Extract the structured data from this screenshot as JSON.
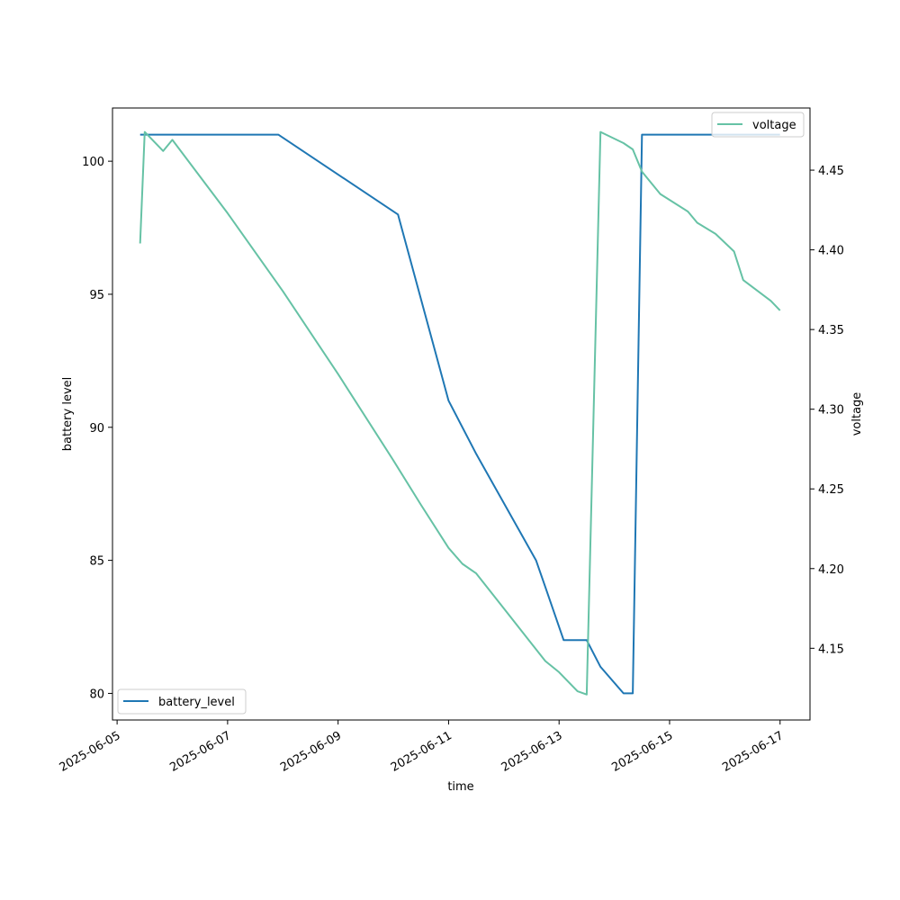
{
  "chart_data": {
    "type": "line",
    "xlabel": "time",
    "ylabel_left": "battery level",
    "ylabel_right": "voltage",
    "x_ticks": [
      "2025-06-05",
      "2025-06-07",
      "2025-06-09",
      "2025-06-11",
      "2025-06-13",
      "2025-06-15",
      "2025-06-17"
    ],
    "xlim": [
      "2025-06-04T22:00",
      "2025-06-17T13:00"
    ],
    "y_left_ticks": [
      80,
      85,
      90,
      95,
      100
    ],
    "y_left_lim": [
      79,
      102
    ],
    "y_right_ticks": [
      4.15,
      4.2,
      4.25,
      4.3,
      4.35,
      4.4,
      4.45
    ],
    "y_right_lim": [
      4.105,
      4.489
    ],
    "series": [
      {
        "name": "battery_level",
        "axis": "left",
        "color": "#1f77b4",
        "legend_position": "lower-left",
        "x": [
          "2025-06-05T10:00",
          "2025-06-07T22:00",
          "2025-06-10T02:00",
          "2025-06-11T00:00",
          "2025-06-11T12:00",
          "2025-06-12T14:00",
          "2025-06-12T18:00",
          "2025-06-13T02:00",
          "2025-06-13T08:00",
          "2025-06-13T12:00",
          "2025-06-13T18:00",
          "2025-06-14T04:00",
          "2025-06-14T08:00",
          "2025-06-14T12:00",
          "2025-06-16T00:00",
          "2025-06-17T00:00"
        ],
        "y": [
          101,
          101,
          98,
          91,
          89,
          85,
          84,
          82,
          82,
          82,
          81,
          80,
          80,
          101,
          101,
          101
        ]
      },
      {
        "name": "voltage",
        "axis": "right",
        "color": "#66c2a5",
        "legend_position": "upper-right",
        "x": [
          "2025-06-05T10:00",
          "2025-06-05T12:00",
          "2025-06-05T20:00",
          "2025-06-06T00:00",
          "2025-06-07T00:00",
          "2025-06-08T00:00",
          "2025-06-09T00:00",
          "2025-06-10T00:00",
          "2025-06-10T12:00",
          "2025-06-11T00:00",
          "2025-06-11T06:00",
          "2025-06-11T12:00",
          "2025-06-12T00:00",
          "2025-06-12T12:00",
          "2025-06-12T18:00",
          "2025-06-13T00:00",
          "2025-06-13T08:00",
          "2025-06-13T12:00",
          "2025-06-13T18:00",
          "2025-06-14T04:00",
          "2025-06-14T08:00",
          "2025-06-14T12:00",
          "2025-06-14T20:00",
          "2025-06-15T08:00",
          "2025-06-15T12:00",
          "2025-06-15T20:00",
          "2025-06-16T04:00",
          "2025-06-16T08:00",
          "2025-06-16T20:00",
          "2025-06-17T00:00"
        ],
        "y": [
          4.404,
          4.474,
          4.462,
          4.469,
          4.423,
          4.374,
          4.322,
          4.268,
          4.24,
          4.213,
          4.203,
          4.197,
          4.175,
          4.153,
          4.142,
          4.135,
          4.123,
          4.121,
          4.474,
          4.467,
          4.463,
          4.449,
          4.435,
          4.424,
          4.417,
          4.41,
          4.399,
          4.381,
          4.368,
          4.362
        ]
      }
    ]
  }
}
